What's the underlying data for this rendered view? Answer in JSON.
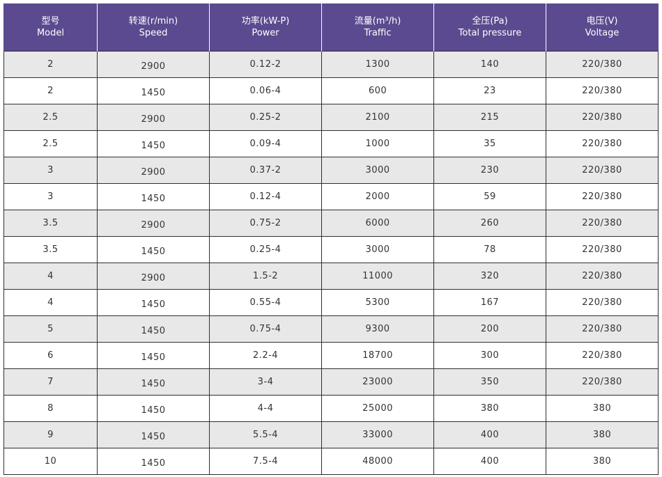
{
  "headers": [
    {
      "cn": "型号",
      "en": "Model"
    },
    {
      "cn": "转速(r/min)",
      "en": "Speed"
    },
    {
      "cn": "功率(kW-P)",
      "en": "Power"
    },
    {
      "cn": "流量(m³/h)",
      "en": "Traffic"
    },
    {
      "cn": "全压(Pa)",
      "en": "Total pressure"
    },
    {
      "cn": "电压(V)",
      "en": "Voltage"
    }
  ],
  "rows": [
    [
      "2",
      "2900",
      "0.12-2",
      "1300",
      "140",
      "220/380"
    ],
    [
      "2",
      "1450",
      "0.06-4",
      "600",
      "23",
      "220/380"
    ],
    [
      "2.5",
      "2900",
      "0.25-2",
      "2100",
      "215",
      "220/380"
    ],
    [
      "2.5",
      "1450",
      "0.09-4",
      "1000",
      "35",
      "220/380"
    ],
    [
      "3",
      "2900",
      "0.37-2",
      "3000",
      "230",
      "220/380"
    ],
    [
      "3",
      "1450",
      "0.12-4",
      "2000",
      "59",
      "220/380"
    ],
    [
      "3.5",
      "2900",
      "0.75-2",
      "6000",
      "260",
      "220/380"
    ],
    [
      "3.5",
      "1450",
      "0.25-4",
      "3000",
      "78",
      "220/380"
    ],
    [
      "4",
      "2900",
      "1.5-2",
      "11000",
      "320",
      "220/380"
    ],
    [
      "4",
      "1450",
      "0.55-4",
      "5300",
      "167",
      "220/380"
    ],
    [
      "5",
      "1450",
      "0.75-4",
      "9300",
      "200",
      "220/380"
    ],
    [
      "6",
      "1450",
      "2.2-4",
      "18700",
      "300",
      "220/380"
    ],
    [
      "7",
      "1450",
      "3-4",
      "23000",
      "350",
      "220/380"
    ],
    [
      "8",
      "1450",
      "4-4",
      "25000",
      "380",
      "380"
    ],
    [
      "9",
      "1450",
      "5.5-4",
      "33000",
      "400",
      "380"
    ],
    [
      "10",
      "1450",
      "7.5-4",
      "48000",
      "400",
      "380"
    ]
  ],
  "colors": {
    "header_bg": "#5b4a8f",
    "row_shaded": "#e8e8e8",
    "row_plain": "#ffffff"
  }
}
